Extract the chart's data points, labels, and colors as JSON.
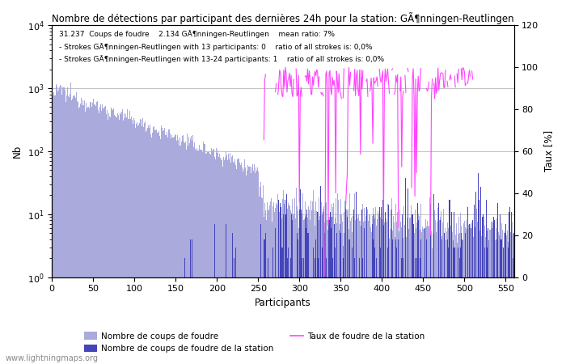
{
  "title": "Nombre de détections par participant des dernières 24h pour la station: GÃ¶nningen-Reutlingen",
  "info_line1": "31.237  Coups de foudre    2.134 GÃ¶nningen-Reutlingen    mean ratio: 7%",
  "info_line2": "- Strokes GÃ¶nningen-Reutlingen with 13 participants: 0    ratio of all strokes is: 0,0%",
  "info_line3": "- Strokes GÃ¶nningen-Reutlingen with 13-24 participants: 1    ratio of all strokes is: 0,0%",
  "ylabel_left": "Nb",
  "ylabel_right": "Taux [%]",
  "xlabel": "Participants",
  "legend1": "Nombre de coups de foudre",
  "legend2": "Nombre de coups de foudre de la station",
  "legend3": "Taux de foudre de la station",
  "color_all": "#aaaadd",
  "color_station": "#4444bb",
  "color_rate": "#ff44ff",
  "watermark": "www.lightningmaps.org",
  "xlim": [
    0,
    560
  ],
  "ylim_right": [
    0,
    120
  ],
  "n_participants": 560
}
